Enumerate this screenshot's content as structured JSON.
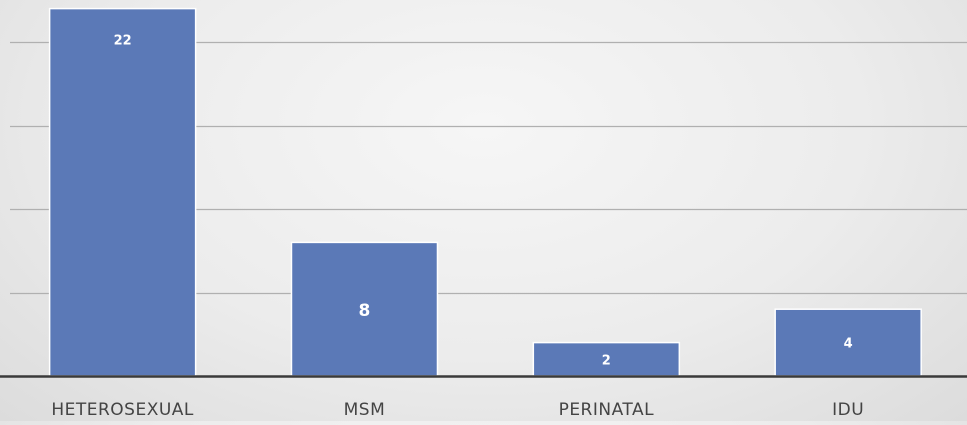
{
  "chart_data": {
    "type": "bar",
    "categories": [
      "HETEROSEXUAL",
      "MSM",
      "PERINATAL",
      "IDU"
    ],
    "values": [
      22,
      8,
      2,
      4
    ],
    "data_labels": [
      "22",
      "8",
      "2",
      "4"
    ],
    "title": "",
    "xlabel": "",
    "ylabel": "",
    "ylim": [
      0,
      22.5
    ],
    "gridline_step": 5,
    "grid": true,
    "legend": "none",
    "colors": {
      "bar": "#5b79b7",
      "bar_edge": "#ffffff",
      "gridline": "#b0b0b0",
      "axis": "#3a3a3a",
      "label": "#444444",
      "data_label": "#ffffff"
    }
  }
}
